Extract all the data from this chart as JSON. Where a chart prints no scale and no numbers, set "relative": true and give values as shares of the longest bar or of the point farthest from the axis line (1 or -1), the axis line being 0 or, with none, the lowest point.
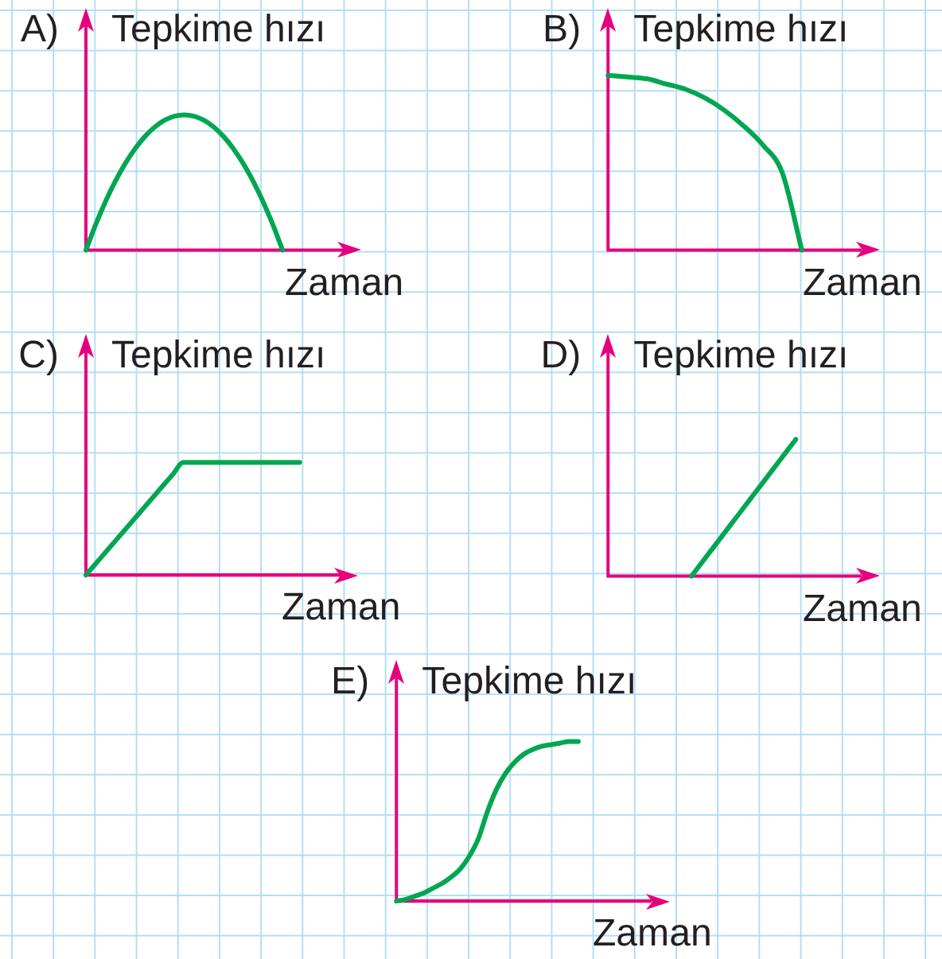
{
  "chart_data": [
    {
      "type": "line",
      "title": "A)",
      "xlabel": "Zaman",
      "ylabel": "Tepkime hızı",
      "relative": true,
      "color": "#00a651",
      "categories": [
        null,
        null,
        null,
        null,
        null,
        null,
        null,
        null,
        null,
        null,
        null,
        null,
        null,
        null,
        null,
        null,
        null,
        null,
        null,
        null,
        null,
        null,
        null,
        null,
        null,
        null,
        null,
        null,
        null
      ],
      "values": [
        0,
        0.19,
        0.36,
        0.51,
        0.64,
        0.75,
        0.84,
        0.91,
        0.96,
        0.99,
        1,
        0.99,
        0.96,
        0.91,
        0.84,
        0.75,
        0.64,
        0.51,
        0.36,
        0.19,
        0,
        null,
        null,
        null,
        null,
        null,
        null,
        null,
        null
      ]
    },
    {
      "type": "line",
      "title": "B)",
      "xlabel": "Zaman",
      "ylabel": "Tepkime hızı",
      "relative": true,
      "color": "#00a651",
      "categories": [
        null,
        null,
        null,
        null,
        null,
        null,
        null,
        null,
        null,
        null,
        null,
        null,
        null,
        null,
        null
      ],
      "values": [
        1,
        0.99,
        0.98,
        0.95,
        0.92,
        0.87,
        0.8,
        0.71,
        0.6,
        0.44,
        0,
        null,
        null,
        null,
        null
      ]
    },
    {
      "type": "line",
      "title": "C)",
      "xlabel": "Zaman",
      "ylabel": "Tepkime hızı",
      "relative": true,
      "color": "#00a651",
      "categories": [
        null,
        null,
        null,
        null,
        null,
        null,
        null,
        null,
        null,
        null,
        null,
        null,
        null,
        null,
        null,
        null,
        null,
        null,
        null,
        null,
        null,
        null,
        null,
        null,
        null,
        null,
        null,
        null,
        null
      ],
      "values": [
        0,
        0.1,
        0.2,
        0.3,
        0.4,
        0.5,
        0.6,
        0.7,
        0.8,
        0.9,
        1,
        1,
        1,
        1,
        1,
        1,
        1,
        1,
        1,
        1,
        1,
        1,
        1,
        null,
        null,
        null,
        null,
        null,
        null
      ]
    },
    {
      "type": "line",
      "title": "D)",
      "xlabel": "Zaman",
      "ylabel": "Tepkime hızı",
      "relative": true,
      "color": "#00a651",
      "categories": [
        null,
        null,
        null,
        null,
        null,
        null,
        null,
        null,
        null,
        null,
        null,
        null,
        null,
        null,
        null,
        null,
        null,
        null,
        null,
        null,
        null,
        null,
        null,
        null,
        null,
        null,
        null
      ],
      "values": [
        null,
        null,
        null,
        null,
        null,
        null,
        null,
        null,
        0,
        0.1,
        0.2,
        0.3,
        0.4,
        0.5,
        0.6,
        0.7,
        0.8,
        0.9,
        1,
        null,
        null,
        null,
        null,
        null,
        null,
        null,
        null
      ]
    },
    {
      "type": "line",
      "title": "E)",
      "xlabel": "Zaman",
      "ylabel": "Tepkime hızı",
      "relative": true,
      "color": "#00a651",
      "categories": [
        null,
        null,
        null,
        null,
        null,
        null,
        null,
        null,
        null,
        null,
        null,
        null,
        null,
        null,
        null,
        null,
        null,
        null,
        null,
        null,
        null,
        null,
        null,
        null,
        null,
        null,
        null,
        null,
        null,
        null,
        null
      ],
      "values": [
        0,
        0.01,
        0.03,
        0.05,
        0.08,
        0.11,
        0.15,
        0.2,
        0.28,
        0.39,
        0.56,
        0.7,
        0.8,
        0.87,
        0.92,
        0.95,
        0.97,
        0.98,
        0.99,
        1,
        1,
        null,
        null,
        null,
        null,
        null,
        null,
        null,
        null,
        null,
        null
      ]
    }
  ]
}
